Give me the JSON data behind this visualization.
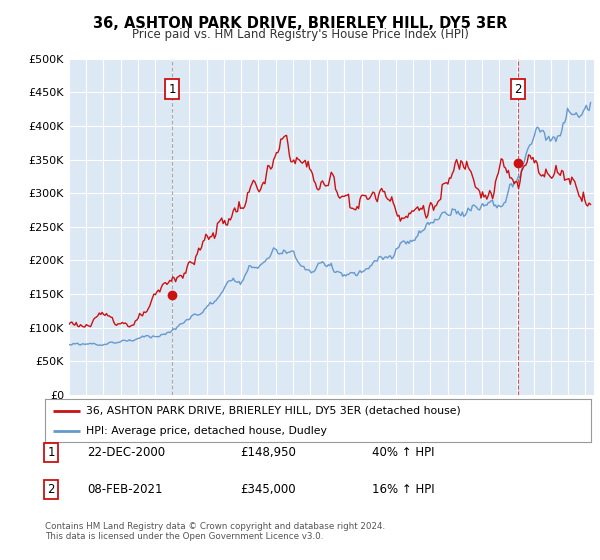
{
  "title": "36, ASHTON PARK DRIVE, BRIERLEY HILL, DY5 3ER",
  "subtitle": "Price paid vs. HM Land Registry's House Price Index (HPI)",
  "ylim": [
    0,
    500000
  ],
  "xlim_start": 1995.0,
  "xlim_end": 2025.5,
  "hpi_color": "#6699cc",
  "price_color": "#cc1111",
  "bg_color": "#dde8f5",
  "marker1_date": 2001.0,
  "marker1_price": 148950,
  "marker2_date": 2021.1,
  "marker2_price": 345000,
  "legend_line1": "36, ASHTON PARK DRIVE, BRIERLEY HILL, DY5 3ER (detached house)",
  "legend_line2": "HPI: Average price, detached house, Dudley",
  "table_row1": [
    "1",
    "22-DEC-2000",
    "£148,950",
    "40% ↑ HPI"
  ],
  "table_row2": [
    "2",
    "08-FEB-2021",
    "£345,000",
    "16% ↑ HPI"
  ],
  "footnote1": "Contains HM Land Registry data © Crown copyright and database right 2024.",
  "footnote2": "This data is licensed under the Open Government Licence v3.0."
}
